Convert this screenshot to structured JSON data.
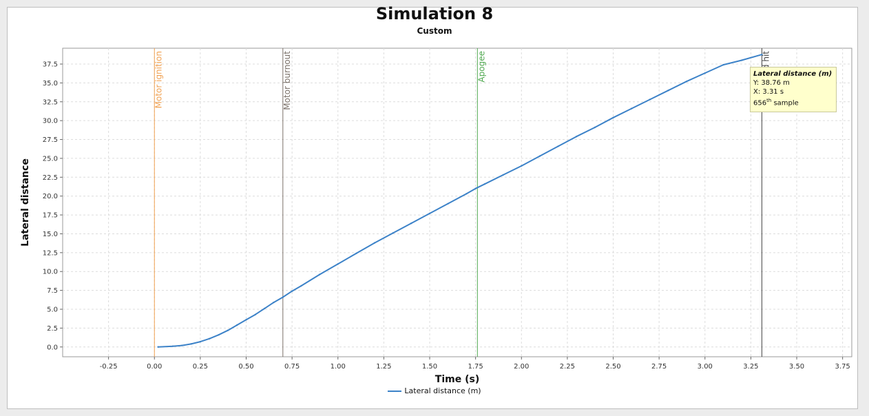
{
  "chart_data": {
    "type": "line",
    "title": "Simulation 8",
    "subtitle": "Custom",
    "xlabel": "Time (s)",
    "ylabel": "Lateral distance",
    "xlim": [
      -0.5,
      3.8
    ],
    "ylim": [
      -1.3,
      39.6
    ],
    "x_ticks": [
      "-0.25",
      "0.00",
      "0.25",
      "0.50",
      "0.75",
      "1.00",
      "1.25",
      "1.50",
      "1.75",
      "2.00",
      "2.25",
      "2.50",
      "2.75",
      "3.00",
      "3.25",
      "3.50",
      "3.75"
    ],
    "y_ticks": [
      "0.0",
      "2.5",
      "5.0",
      "7.5",
      "10.0",
      "12.5",
      "15.0",
      "17.5",
      "20.0",
      "22.5",
      "25.0",
      "27.5",
      "30.0",
      "32.5",
      "35.0",
      "37.5"
    ],
    "grid": true,
    "legend_position": "bottom",
    "series": [
      {
        "name": "Lateral distance (m)",
        "color": "#3c82c8",
        "x": [
          0.02,
          0.1,
          0.15,
          0.2,
          0.25,
          0.3,
          0.35,
          0.4,
          0.45,
          0.5,
          0.55,
          0.6,
          0.65,
          0.7,
          0.75,
          0.8,
          0.9,
          1.0,
          1.1,
          1.2,
          1.3,
          1.4,
          1.5,
          1.6,
          1.7,
          1.75,
          1.8,
          1.9,
          2.0,
          2.1,
          2.2,
          2.3,
          2.4,
          2.5,
          2.6,
          2.7,
          2.8,
          2.9,
          3.0,
          3.1,
          3.2,
          3.31
        ],
        "y": [
          0.0,
          0.1,
          0.2,
          0.4,
          0.7,
          1.1,
          1.6,
          2.2,
          2.9,
          3.6,
          4.3,
          5.1,
          5.9,
          6.6,
          7.4,
          8.1,
          9.6,
          11.0,
          12.4,
          13.8,
          15.1,
          16.4,
          17.7,
          19.0,
          20.3,
          21.0,
          21.6,
          22.8,
          24.0,
          25.3,
          26.6,
          27.9,
          29.1,
          30.4,
          31.6,
          32.8,
          34.0,
          35.2,
          36.3,
          37.4,
          38.0,
          38.76
        ]
      }
    ],
    "events": [
      {
        "label": "Motor ignition",
        "x": 0.0,
        "color": "#f0a050"
      },
      {
        "label": "Motor burnout",
        "x": 0.7,
        "color": "#7a7068"
      },
      {
        "label": "Apogee",
        "x": 1.76,
        "color": "#4fa84f"
      },
      {
        "label": "d hit",
        "x": 3.31,
        "color": "#444444"
      }
    ]
  },
  "tooltip": {
    "title": "Lateral distance (m)",
    "y_line": "Y: 38.76 m",
    "x_line": "X: 3.31 s",
    "sample_num": "656",
    "sample_sup": "th",
    "sample_word": " sample"
  }
}
